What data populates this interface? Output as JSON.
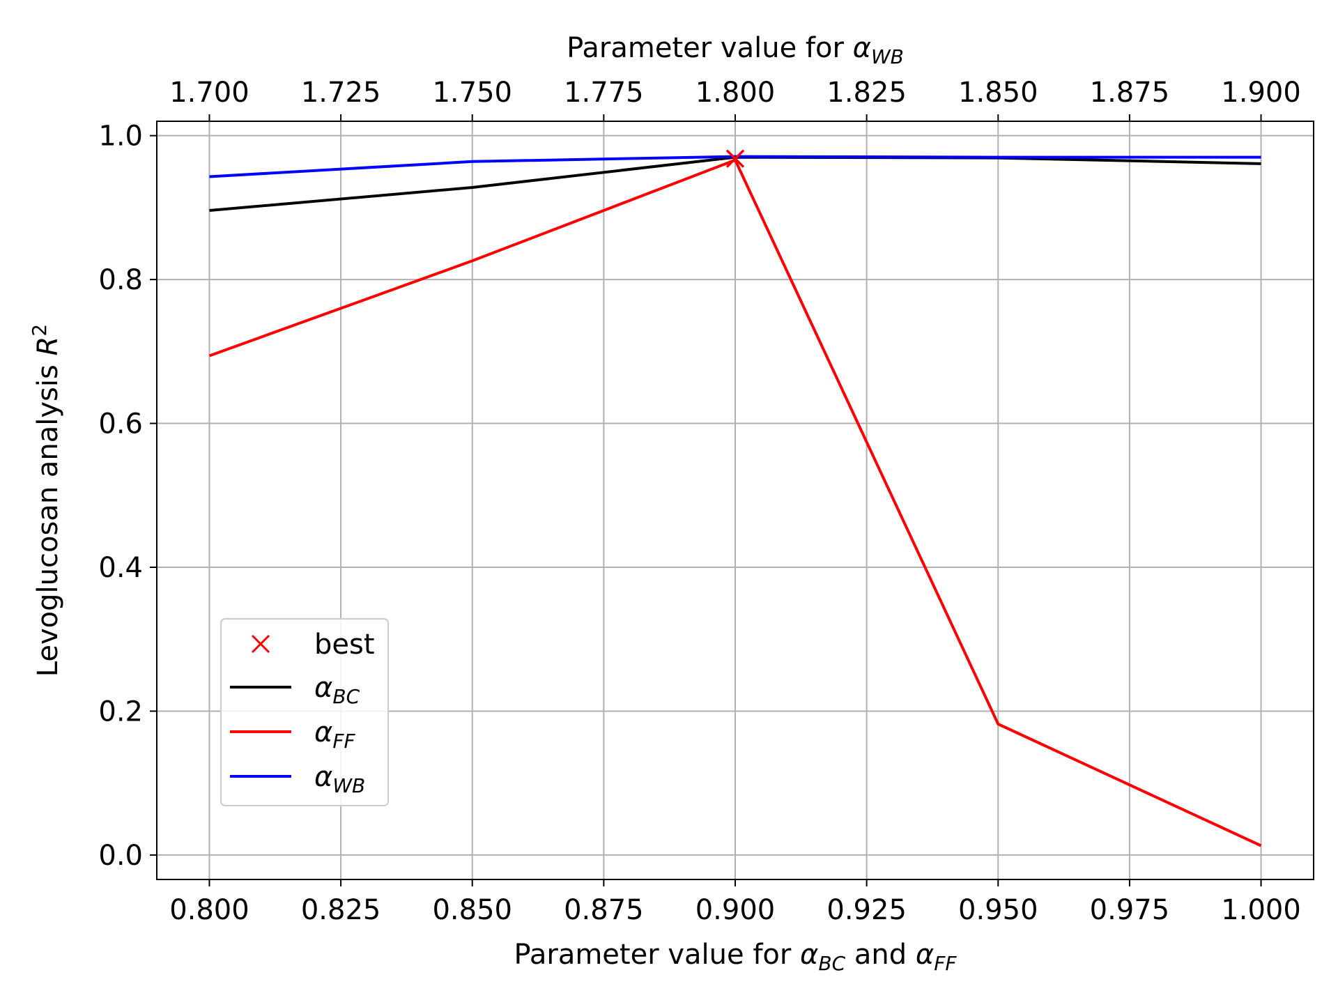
{
  "chart_data": {
    "type": "line",
    "title": "",
    "xlabel": {
      "prefix": "Parameter value for ",
      "a1": "α",
      "a1_sub": "BC",
      "mid": " and ",
      "a2": "α",
      "a2_sub": "FF"
    },
    "x2label": {
      "prefix": "Parameter value for ",
      "a": "α",
      "a_sub": "WB"
    },
    "ylabel": {
      "prefix": "Levoglucosan analysis ",
      "var": "R",
      "sup": "2"
    },
    "x_bottom": {
      "lim": [
        0.79,
        1.01
      ],
      "ticks": [
        0.8,
        0.825,
        0.85,
        0.875,
        0.9,
        0.925,
        0.95,
        0.975,
        1.0
      ],
      "tick_labels": [
        "0.800",
        "0.825",
        "0.850",
        "0.875",
        "0.900",
        "0.925",
        "0.950",
        "0.975",
        "1.000"
      ]
    },
    "x_top": {
      "ticks": [
        1.7,
        1.725,
        1.75,
        1.775,
        1.8,
        1.825,
        1.85,
        1.875,
        1.9
      ],
      "tick_labels": [
        "1.700",
        "1.725",
        "1.750",
        "1.775",
        "1.800",
        "1.825",
        "1.850",
        "1.875",
        "1.900"
      ]
    },
    "y": {
      "lim": [
        -0.034,
        1.02
      ],
      "ticks": [
        0.0,
        0.2,
        0.4,
        0.6,
        0.8,
        1.0
      ],
      "tick_labels": [
        "0.0",
        "0.2",
        "0.4",
        "0.6",
        "0.8",
        "1.0"
      ]
    },
    "grid": true,
    "legend_position": "lower-left",
    "series": [
      {
        "key": "bc",
        "name": "α",
        "sub": "BC",
        "color": "#000000",
        "axis": "bottom",
        "x": [
          0.8,
          0.85,
          0.9,
          0.95,
          1.0
        ],
        "y": [
          0.896,
          0.928,
          0.97,
          0.969,
          0.961
        ]
      },
      {
        "key": "ff",
        "name": "α",
        "sub": "FF",
        "color": "#ff0000",
        "axis": "bottom",
        "x": [
          0.8,
          0.85,
          0.9,
          0.95,
          1.0
        ],
        "y": [
          0.694,
          0.826,
          0.966,
          0.182,
          0.013
        ]
      },
      {
        "key": "wb",
        "name": "α",
        "sub": "WB",
        "color": "#0000ff",
        "axis": "top",
        "x": [
          1.7,
          1.75,
          1.8,
          1.85,
          1.9
        ],
        "y": [
          0.943,
          0.964,
          0.971,
          0.97,
          0.97
        ]
      }
    ],
    "best": {
      "name": "best",
      "color": "#ff0000",
      "x": 0.9,
      "y": 0.968
    }
  }
}
